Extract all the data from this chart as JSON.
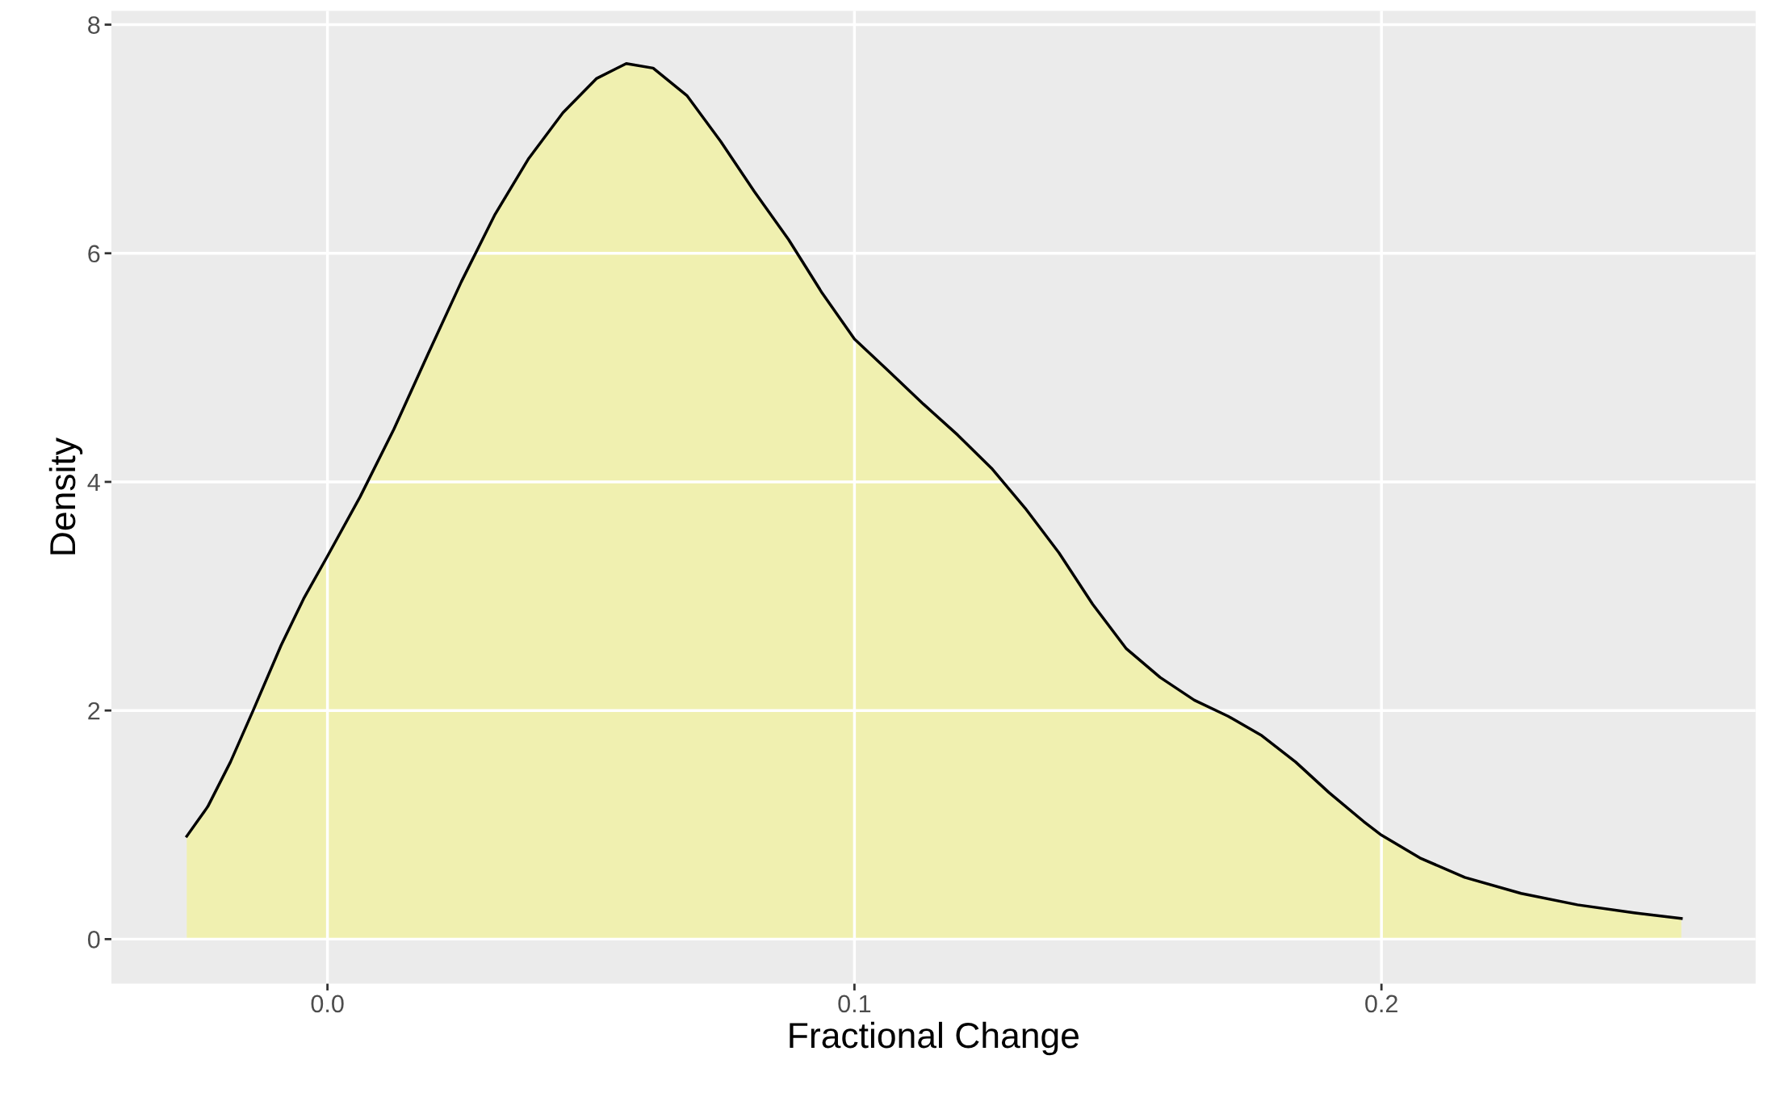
{
  "chart_data": {
    "type": "area",
    "xlabel": "Fractional Change",
    "ylabel": "Density",
    "x": [
      -0.0267,
      -0.0227,
      -0.0184,
      -0.0141,
      -0.0088,
      -0.0045,
      0.0,
      0.0062,
      0.0126,
      0.019,
      0.0254,
      0.0318,
      0.0382,
      0.0447,
      0.0511,
      0.0567,
      0.0618,
      0.0682,
      0.0746,
      0.081,
      0.0875,
      0.0939,
      0.1,
      0.1067,
      0.1131,
      0.1196,
      0.126,
      0.1324,
      0.1388,
      0.1452,
      0.1516,
      0.158,
      0.1645,
      0.1709,
      0.1773,
      0.1837,
      0.1901,
      0.1966,
      0.2,
      0.2073,
      0.2158,
      0.2265,
      0.2372,
      0.2479,
      0.2569
    ],
    "series": [
      {
        "color": "#f0f0b0",
        "values": [
          0.9,
          1.16,
          1.55,
          2.0,
          2.57,
          2.98,
          3.35,
          3.87,
          4.46,
          5.11,
          5.75,
          6.34,
          6.83,
          7.23,
          7.53,
          7.66,
          7.62,
          7.38,
          6.98,
          6.54,
          6.12,
          5.65,
          5.25,
          4.96,
          4.68,
          4.41,
          4.12,
          3.77,
          3.38,
          2.93,
          2.54,
          2.29,
          2.09,
          1.95,
          1.78,
          1.55,
          1.28,
          1.03,
          0.91,
          0.71,
          0.54,
          0.4,
          0.3,
          0.23,
          0.18
        ]
      }
    ],
    "xlim": [
      -0.041,
      0.271
    ],
    "ylim": [
      -0.39,
      8.12
    ],
    "xticks": [
      {
        "value": 0.0,
        "label": "0.0"
      },
      {
        "value": 0.1,
        "label": "0.1"
      },
      {
        "value": 0.2,
        "label": "0.2"
      }
    ],
    "yticks": [
      0,
      2,
      4,
      6,
      8
    ],
    "grid": true
  }
}
